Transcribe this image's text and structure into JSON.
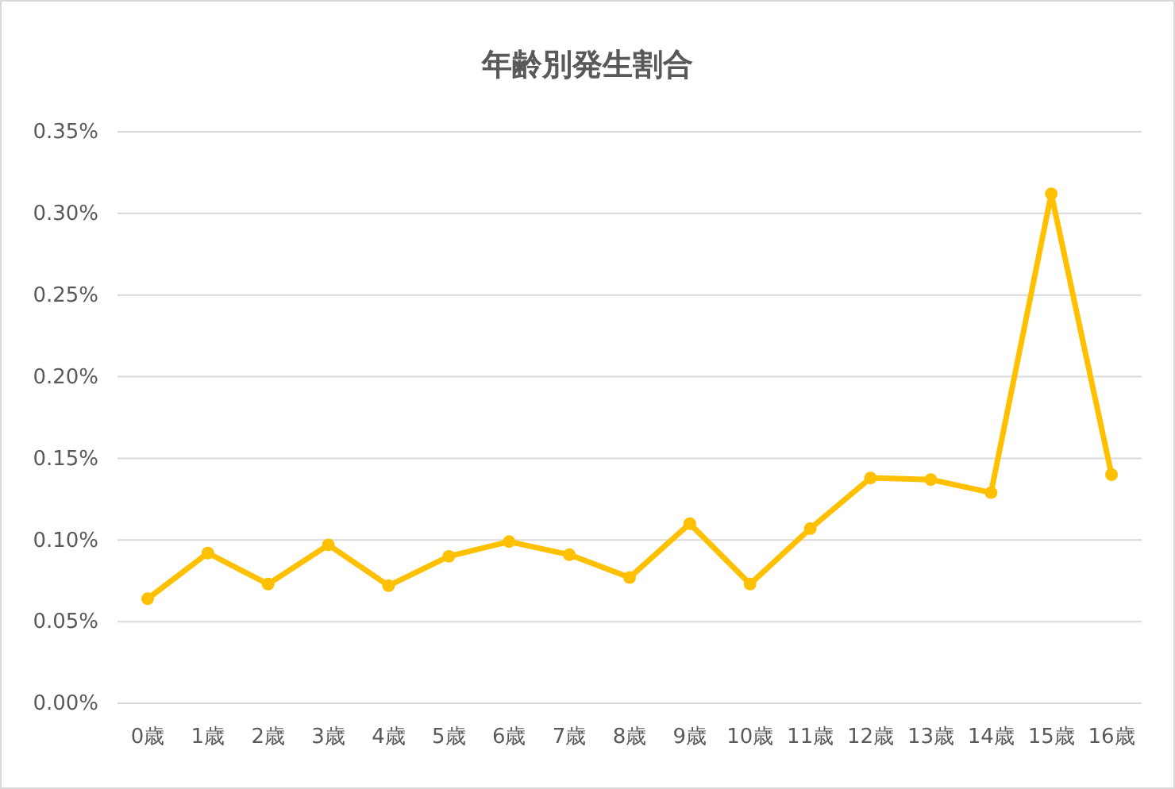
{
  "chart_data": {
    "type": "line",
    "title": "年齢別発生割合",
    "categories": [
      "0歳",
      "1歳",
      "2歳",
      "3歳",
      "4歳",
      "5歳",
      "6歳",
      "7歳",
      "8歳",
      "9歳",
      "10歳",
      "11歳",
      "12歳",
      "13歳",
      "14歳",
      "15歳",
      "16歳"
    ],
    "series": [
      {
        "color": "#ffc000",
        "values": [
          0.064,
          0.092,
          0.073,
          0.097,
          0.072,
          0.09,
          0.099,
          0.091,
          0.077,
          0.11,
          0.073,
          0.107,
          0.138,
          0.137,
          0.129,
          0.312,
          0.14
        ]
      }
    ],
    "ylim": [
      0,
      0.35
    ],
    "yticks": [
      {
        "value": 0,
        "label": "0.00%"
      },
      {
        "value": 0.05,
        "label": "0.05%"
      },
      {
        "value": 0.1,
        "label": "0.10%"
      },
      {
        "value": 0.15,
        "label": "0.15%"
      },
      {
        "value": 0.2,
        "label": "0.20%"
      },
      {
        "value": 0.25,
        "label": "0.25%"
      },
      {
        "value": 0.3,
        "label": "0.30%"
      },
      {
        "value": 0.35,
        "label": "0.35%"
      }
    ],
    "grid": "y",
    "marker": "circle",
    "line_style": "solid"
  }
}
